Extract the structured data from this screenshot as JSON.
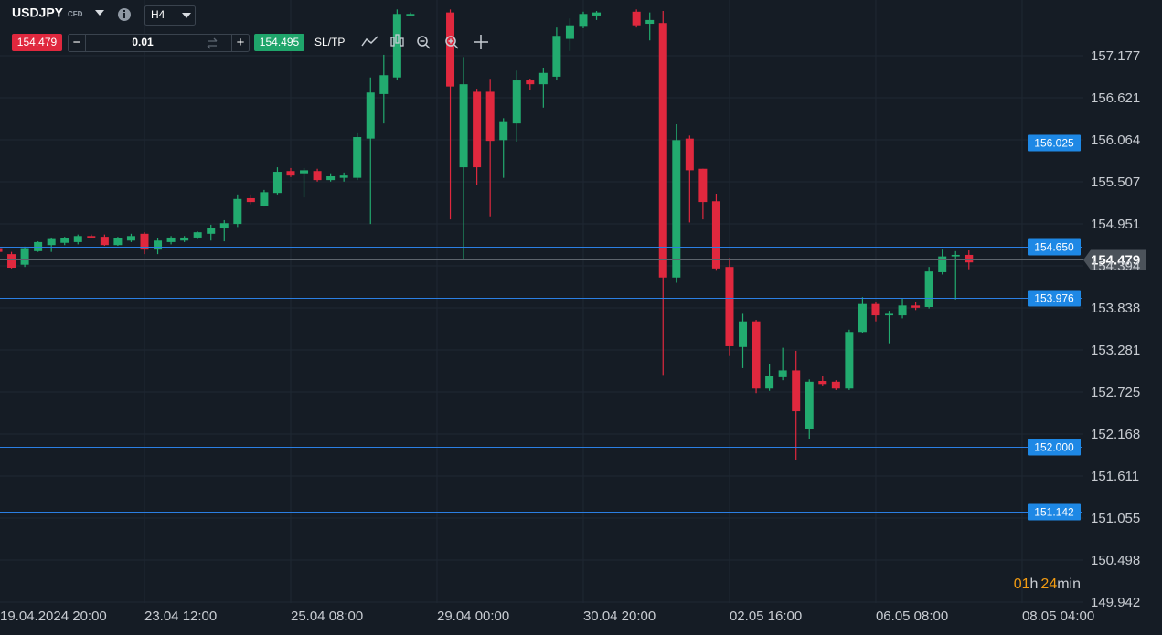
{
  "toolbar": {
    "symbol": "USDJPY",
    "symbol_type": "CFD",
    "timeframe": "H4",
    "bid": "154.479",
    "lot": "0.01",
    "ask": "154.495",
    "sltp": "SL/TP"
  },
  "countdown": {
    "hours": "01",
    "hours_unit": "h",
    "minutes": "24",
    "minutes_unit": "min"
  },
  "chart_data": {
    "type": "candlestick",
    "categories": [
      "19.04.2024 20:00",
      null,
      null,
      null,
      null,
      null,
      null,
      null,
      null,
      null,
      null,
      "23.04 12:00",
      null,
      null,
      null,
      null,
      null,
      null,
      null,
      null,
      null,
      null,
      "25.04 08:00",
      null,
      null,
      null,
      null,
      null,
      null,
      null,
      null,
      null,
      null,
      "29.04 00:00",
      null,
      null,
      null,
      null,
      null,
      null,
      null,
      null,
      null,
      null,
      "30.04 20:00",
      null,
      null,
      null,
      null,
      null,
      null,
      null,
      null,
      null,
      null,
      "02.05 16:00",
      null,
      null,
      null,
      null,
      null,
      null,
      null,
      null,
      null,
      null,
      "06.05 08:00",
      null,
      null,
      null,
      null,
      null,
      null,
      null,
      null,
      null,
      null,
      "08.05 04:00"
    ],
    "open": [
      154.63,
      154.55,
      154.41,
      154.59,
      154.67,
      154.7,
      154.71,
      154.79,
      154.78,
      154.67,
      154.73,
      154.82,
      154.61,
      154.71,
      154.73,
      154.77,
      154.82,
      154.89,
      154.95,
      155.29,
      155.19,
      155.36,
      155.65,
      155.62,
      155.65,
      155.53,
      155.56,
      155.56,
      156.08,
      156.67,
      156.89,
      157.71,
      null,
      null,
      157.75,
      155.7,
      156.7,
      156.7,
      156.06,
      156.28,
      156.85,
      156.8,
      156.9,
      157.4,
      157.56,
      157.71,
      null,
      null,
      157.76,
      157.6,
      157.61,
      154.24,
      156.08,
      155.68,
      155.25,
      154.38,
      153.32,
      153.66,
      152.77,
      152.92,
      153.01,
      152.23,
      152.87,
      152.86,
      152.77,
      153.52,
      153.89,
      153.74,
      153.74,
      153.87,
      153.85,
      154.31,
      154.52,
      154.54,
      null,
      null,
      null,
      null
    ],
    "high": [
      154.65,
      154.58,
      154.65,
      154.72,
      154.77,
      154.78,
      154.81,
      154.81,
      154.81,
      154.78,
      154.82,
      154.84,
      154.76,
      154.79,
      154.79,
      154.85,
      154.94,
      155.0,
      155.34,
      155.34,
      155.4,
      155.7,
      155.69,
      155.69,
      155.68,
      155.62,
      155.63,
      156.15,
      156.89,
      157.19,
      157.79,
      157.75,
      null,
      null,
      157.79,
      157.16,
      156.74,
      156.86,
      156.35,
      156.98,
      156.87,
      157.02,
      157.55,
      157.67,
      157.76,
      157.77,
      null,
      null,
      157.79,
      157.75,
      157.77,
      156.27,
      156.12,
      155.68,
      155.35,
      154.5,
      153.76,
      153.68,
      153.1,
      153.31,
      153.27,
      152.89,
      152.94,
      152.88,
      153.55,
      153.98,
      153.92,
      153.8,
      153.97,
      153.92,
      154.38,
      154.61,
      154.59,
      154.6,
      null,
      null,
      null,
      null
    ],
    "low": [
      154.56,
      154.36,
      154.38,
      154.58,
      154.58,
      154.67,
      154.68,
      154.76,
      154.66,
      154.66,
      154.71,
      154.55,
      154.55,
      154.68,
      154.71,
      154.75,
      154.73,
      154.72,
      154.91,
      155.21,
      155.18,
      155.34,
      155.57,
      155.3,
      155.51,
      155.51,
      155.51,
      155.53,
      154.95,
      156.28,
      156.85,
      157.7,
      null,
      null,
      155.01,
      154.47,
      155.46,
      155.05,
      155.56,
      156.04,
      156.72,
      156.49,
      156.85,
      157.24,
      157.54,
      157.65,
      null,
      null,
      157.55,
      157.38,
      152.95,
      154.17,
      154.97,
      155.01,
      154.33,
      153.2,
      153.04,
      152.71,
      152.74,
      152.88,
      151.82,
      152.1,
      152.81,
      152.75,
      152.75,
      153.5,
      153.66,
      153.37,
      153.7,
      153.81,
      153.83,
      154.28,
      153.95,
      154.35,
      null,
      null,
      null,
      null
    ],
    "close": [
      154.58,
      154.37,
      154.63,
      154.71,
      154.75,
      154.76,
      154.79,
      154.77,
      154.67,
      154.76,
      154.79,
      154.61,
      154.73,
      154.77,
      154.77,
      154.84,
      154.9,
      154.96,
      155.28,
      155.24,
      155.37,
      155.64,
      155.59,
      155.66,
      155.53,
      155.58,
      155.59,
      156.1,
      156.69,
      156.92,
      157.73,
      157.73,
      null,
      null,
      156.77,
      156.8,
      155.7,
      156.05,
      156.31,
      156.85,
      156.8,
      156.95,
      157.44,
      157.58,
      157.73,
      157.75,
      null,
      null,
      157.58,
      157.65,
      154.24,
      156.06,
      155.66,
      155.24,
      154.36,
      153.33,
      153.66,
      152.77,
      152.94,
      153.01,
      152.47,
      152.86,
      152.83,
      152.77,
      153.52,
      153.89,
      153.74,
      153.76,
      153.87,
      153.84,
      154.32,
      154.52,
      154.54,
      154.44,
      null,
      null,
      null,
      null
    ],
    "up_color": "#22ab6f",
    "down_color": "#e0283e",
    "ylim": [
      149.93,
      157.915
    ],
    "yticks": [
      157.177,
      156.621,
      156.064,
      155.507,
      154.951,
      154.394,
      153.838,
      153.281,
      152.725,
      152.168,
      151.611,
      151.055,
      150.498,
      149.942
    ],
    "grid": true,
    "levels": [
      156.025,
      {
        "value": 154.65,
        "label": "154.650"
      },
      153.976,
      {
        "value": 152.0,
        "label": "152.000"
      },
      151.142
    ],
    "level_color": "#2b7fe3",
    "current_price": 154.479
  }
}
